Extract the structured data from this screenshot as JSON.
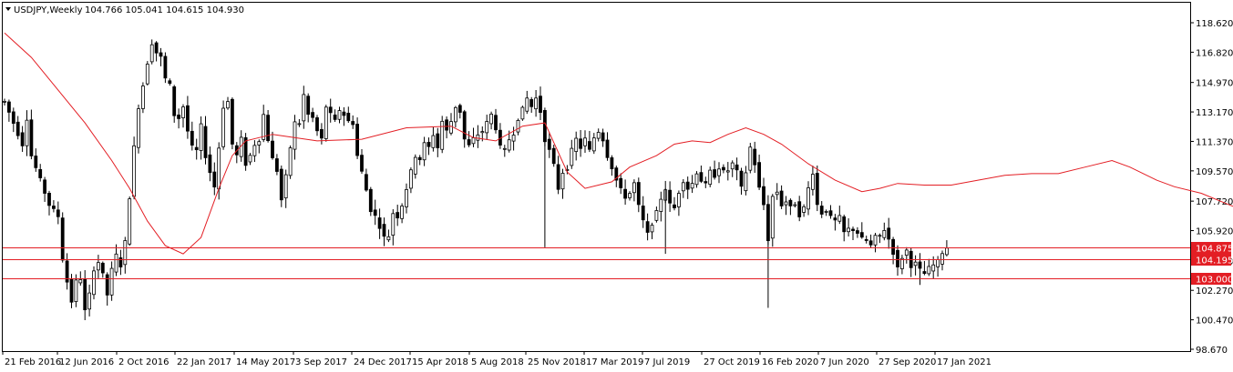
{
  "header": {
    "symbol": "USDJPY,Weekly",
    "ohlc": "104.766 105.041 104.615 104.930"
  },
  "chart_data": {
    "type": "candlestick",
    "title": "USDJPY,Weekly",
    "ylim": [
      98.67,
      119.3
    ],
    "y_ticks": [
      "118.620",
      "116.820",
      "114.970",
      "113.170",
      "111.370",
      "109.570",
      "107.720",
      "105.920",
      "104.070",
      "102.270",
      "100.470",
      "98.670"
    ],
    "x_tick_labels": [
      "21 Feb 2016",
      "12 Jun 2016",
      "2 Oct 2016",
      "22 Jan 2017",
      "14 May 2017",
      "3 Sep 2017",
      "24 Dec 2017",
      "15 Apr 2018",
      "5 Aug 2018",
      "25 Nov 2018",
      "17 Mar 2019",
      "7 Jul 2019",
      "27 Oct 2019",
      "16 Feb 2020",
      "7 Jun 2020",
      "27 Sep 2020",
      "17 Jan 2021"
    ],
    "close_path": [
      [
        0,
        113.8
      ],
      [
        2,
        112.5
      ],
      [
        4,
        111.2
      ],
      [
        5,
        112.8
      ],
      [
        6,
        110.5
      ],
      [
        8,
        109.0
      ],
      [
        10,
        107.5
      ],
      [
        12,
        106.8
      ],
      [
        13,
        104.2
      ],
      [
        14,
        102.8
      ],
      [
        15,
        101.6
      ],
      [
        16,
        102.8
      ],
      [
        17,
        103.0
      ],
      [
        18,
        101.0
      ],
      [
        19,
        102.0
      ],
      [
        20,
        103.6
      ],
      [
        21,
        104.0
      ],
      [
        22,
        103.2
      ],
      [
        23,
        102.0
      ],
      [
        24,
        103.5
      ],
      [
        25,
        104.4
      ],
      [
        26,
        103.8
      ],
      [
        27,
        105.2
      ],
      [
        28,
        108.0
      ],
      [
        29,
        111.0
      ],
      [
        30,
        113.5
      ],
      [
        31,
        114.8
      ],
      [
        32,
        116.2
      ],
      [
        33,
        117.4
      ],
      [
        34,
        116.8
      ],
      [
        35,
        116.5
      ],
      [
        36,
        115.2
      ],
      [
        37,
        114.8
      ],
      [
        38,
        113.0
      ],
      [
        39,
        112.8
      ],
      [
        40,
        113.5
      ],
      [
        41,
        112.0
      ],
      [
        42,
        111.0
      ],
      [
        43,
        110.8
      ],
      [
        44,
        112.3
      ],
      [
        45,
        110.5
      ],
      [
        46,
        109.5
      ],
      [
        47,
        108.6
      ],
      [
        48,
        111.0
      ],
      [
        49,
        113.5
      ],
      [
        50,
        113.8
      ],
      [
        51,
        111.2
      ],
      [
        52,
        110.5
      ],
      [
        53,
        111.5
      ],
      [
        54,
        110.0
      ],
      [
        55,
        110.5
      ],
      [
        56,
        111.2
      ],
      [
        57,
        111.5
      ],
      [
        58,
        113.0
      ],
      [
        59,
        111.5
      ],
      [
        60,
        110.3
      ],
      [
        61,
        109.6
      ],
      [
        62,
        107.8
      ],
      [
        63,
        109.2
      ],
      [
        64,
        111.0
      ],
      [
        65,
        112.5
      ],
      [
        66,
        112.5
      ],
      [
        67,
        114.2
      ],
      [
        68,
        113.0
      ],
      [
        69,
        112.8
      ],
      [
        70,
        112.0
      ],
      [
        71,
        111.5
      ],
      [
        72,
        113.5
      ],
      [
        73,
        113.0
      ],
      [
        74,
        112.6
      ],
      [
        75,
        113.3
      ],
      [
        76,
        113.0
      ],
      [
        77,
        112.6
      ],
      [
        78,
        112.5
      ],
      [
        79,
        110.5
      ],
      [
        80,
        109.5
      ],
      [
        81,
        108.4
      ],
      [
        82,
        107.2
      ],
      [
        83,
        106.8
      ],
      [
        84,
        106.2
      ],
      [
        85,
        105.5
      ],
      [
        86,
        105.6
      ],
      [
        87,
        107.0
      ],
      [
        88,
        106.8
      ],
      [
        89,
        107.5
      ],
      [
        90,
        108.5
      ],
      [
        91,
        109.5
      ],
      [
        92,
        110.5
      ],
      [
        93,
        110.3
      ],
      [
        94,
        111.2
      ],
      [
        95,
        111.0
      ],
      [
        96,
        111.8
      ],
      [
        97,
        111.0
      ],
      [
        98,
        112.6
      ],
      [
        99,
        112.0
      ],
      [
        100,
        112.6
      ],
      [
        101,
        113.5
      ],
      [
        102,
        113.2
      ],
      [
        103,
        111.5
      ],
      [
        104,
        111.1
      ],
      [
        105,
        111.5
      ],
      [
        106,
        111.8
      ],
      [
        107,
        112.0
      ],
      [
        108,
        112.5
      ],
      [
        109,
        113.0
      ],
      [
        110,
        112.2
      ],
      [
        111,
        111.0
      ],
      [
        112,
        110.8
      ],
      [
        113,
        111.5
      ],
      [
        114,
        111.9
      ],
      [
        115,
        112.8
      ],
      [
        116,
        113.3
      ],
      [
        117,
        114.0
      ],
      [
        118,
        113.5
      ],
      [
        119,
        114.0
      ],
      [
        120,
        113.2
      ],
      [
        121,
        111.5
      ],
      [
        122,
        110.8
      ],
      [
        123,
        109.9
      ],
      [
        124,
        108.5
      ],
      [
        125,
        109.5
      ],
      [
        126,
        109.8
      ],
      [
        127,
        110.8
      ],
      [
        128,
        111.5
      ],
      [
        129,
        111.0
      ],
      [
        130,
        111.5
      ],
      [
        131,
        110.8
      ],
      [
        132,
        111.6
      ],
      [
        133,
        112.0
      ],
      [
        134,
        111.5
      ],
      [
        135,
        110.5
      ],
      [
        136,
        109.8
      ],
      [
        137,
        109.0
      ],
      [
        138,
        108.4
      ],
      [
        139,
        108.0
      ],
      [
        140,
        108.2
      ],
      [
        141,
        108.8
      ],
      [
        142,
        107.4
      ],
      [
        143,
        106.5
      ],
      [
        144,
        105.7
      ],
      [
        145,
        106.4
      ],
      [
        146,
        107.0
      ],
      [
        147,
        107.9
      ],
      [
        148,
        108.5
      ],
      [
        149,
        107.5
      ],
      [
        150,
        107.3
      ],
      [
        151,
        108.3
      ],
      [
        152,
        109.0
      ],
      [
        153,
        108.5
      ],
      [
        154,
        108.8
      ],
      [
        155,
        109.5
      ],
      [
        156,
        109.0
      ],
      [
        157,
        108.7
      ],
      [
        158,
        109.5
      ],
      [
        159,
        109.3
      ],
      [
        160,
        109.8
      ],
      [
        161,
        109.5
      ],
      [
        162,
        109.6
      ],
      [
        163,
        110.0
      ],
      [
        164,
        109.5
      ],
      [
        165,
        108.5
      ],
      [
        166,
        109.5
      ],
      [
        167,
        111.0
      ],
      [
        168,
        110.0
      ],
      [
        169,
        108.5
      ],
      [
        170,
        107.5
      ],
      [
        171,
        105.4
      ],
      [
        172,
        108.0
      ],
      [
        173,
        108.3
      ],
      [
        174,
        107.5
      ],
      [
        175,
        107.7
      ],
      [
        176,
        107.3
      ],
      [
        177,
        107.6
      ],
      [
        178,
        106.9
      ],
      [
        179,
        107.3
      ],
      [
        180,
        108.5
      ],
      [
        181,
        109.5
      ],
      [
        182,
        107.5
      ],
      [
        183,
        107.0
      ],
      [
        184,
        107.2
      ],
      [
        185,
        106.7
      ],
      [
        186,
        106.5
      ],
      [
        187,
        106.7
      ],
      [
        188,
        105.8
      ],
      [
        189,
        106.0
      ],
      [
        190,
        106.0
      ],
      [
        191,
        105.8
      ],
      [
        192,
        105.4
      ],
      [
        193,
        105.3
      ],
      [
        194,
        105.0
      ],
      [
        195,
        105.5
      ],
      [
        196,
        105.6
      ],
      [
        197,
        106.0
      ],
      [
        198,
        105.4
      ],
      [
        199,
        104.6
      ],
      [
        200,
        103.6
      ],
      [
        201,
        104.3
      ],
      [
        202,
        104.7
      ],
      [
        203,
        103.8
      ],
      [
        204,
        103.9
      ],
      [
        205,
        103.5
      ],
      [
        206,
        103.3
      ],
      [
        207,
        103.6
      ],
      [
        208,
        103.8
      ],
      [
        209,
        104.0
      ],
      [
        210,
        104.6
      ],
      [
        211,
        104.9
      ]
    ],
    "ma_path": [
      [
        0,
        118.0
      ],
      [
        6,
        116.5
      ],
      [
        12,
        114.5
      ],
      [
        18,
        112.5
      ],
      [
        24,
        110.2
      ],
      [
        28,
        108.5
      ],
      [
        32,
        106.5
      ],
      [
        36,
        105.0
      ],
      [
        40,
        104.5
      ],
      [
        44,
        105.5
      ],
      [
        48,
        108.5
      ],
      [
        51,
        110.5
      ],
      [
        54,
        111.4
      ],
      [
        60,
        111.8
      ],
      [
        70,
        111.4
      ],
      [
        80,
        111.5
      ],
      [
        90,
        112.2
      ],
      [
        100,
        112.3
      ],
      [
        105,
        111.6
      ],
      [
        110,
        111.4
      ],
      [
        116,
        112.3
      ],
      [
        121,
        112.5
      ],
      [
        126,
        109.5
      ],
      [
        130,
        108.5
      ],
      [
        136,
        108.9
      ],
      [
        140,
        109.8
      ],
      [
        146,
        110.5
      ],
      [
        150,
        111.2
      ],
      [
        154,
        111.4
      ],
      [
        158,
        111.3
      ],
      [
        162,
        111.8
      ],
      [
        166,
        112.2
      ],
      [
        170,
        111.8
      ],
      [
        174,
        111.2
      ],
      [
        180,
        110.0
      ],
      [
        186,
        109.0
      ],
      [
        192,
        108.3
      ],
      [
        196,
        108.5
      ],
      [
        200,
        108.8
      ],
      [
        206,
        108.7
      ],
      [
        212,
        108.7
      ],
      [
        218,
        109.0
      ],
      [
        224,
        109.3
      ],
      [
        230,
        109.4
      ],
      [
        236,
        109.4
      ],
      [
        242,
        109.8
      ],
      [
        248,
        110.2
      ],
      [
        252,
        109.8
      ],
      [
        258,
        109.0
      ],
      [
        262,
        108.6
      ],
      [
        268,
        108.2
      ],
      [
        276,
        107.3
      ],
      [
        284,
        106.7
      ],
      [
        292,
        106.1
      ],
      [
        300,
        105.5
      ],
      [
        306,
        105.0
      ],
      [
        312,
        104.9
      ]
    ],
    "price_lines": [
      {
        "label": "104.875",
        "value": 104.875
      },
      {
        "label": "104.195",
        "value": 104.195
      },
      {
        "label": "103.000",
        "value": 103.0
      }
    ],
    "colors": {
      "background": "#ffffff",
      "candle": "#000000",
      "moving_average": "#e31e24",
      "price_line": "#e31e24",
      "price_tag": "#e31e24"
    },
    "grid": false
  }
}
